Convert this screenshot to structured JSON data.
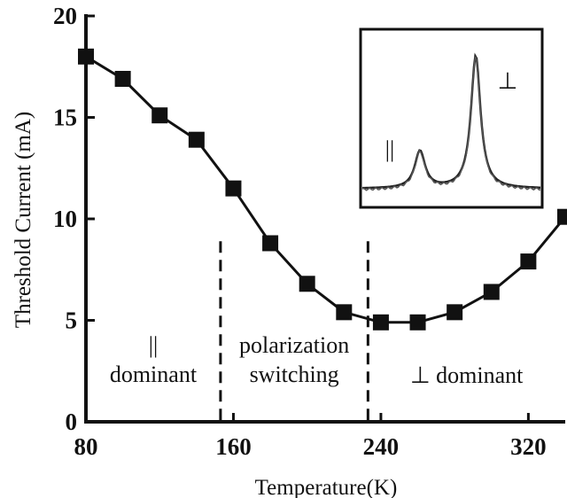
{
  "chart_data": {
    "type": "line",
    "xlabel": "Temperature(K)",
    "ylabel": "Threshold Current (mA)",
    "xlim": [
      80,
      340
    ],
    "ylim": [
      0,
      20
    ],
    "x_ticks": [
      80,
      160,
      240,
      320
    ],
    "y_ticks": [
      0,
      5,
      10,
      15,
      20
    ],
    "grid": false,
    "marker": "square",
    "line_color": "#111111",
    "series": [
      {
        "x": [
          80,
          100,
          120,
          140,
          160,
          180,
          200,
          220,
          240,
          260,
          280,
          300,
          320,
          340
        ],
        "y": [
          18.0,
          16.9,
          15.1,
          13.9,
          11.5,
          8.8,
          6.8,
          5.4,
          4.9,
          4.9,
          5.4,
          6.4,
          7.9,
          10.1
        ]
      }
    ],
    "dividers_x": [
      153,
      233
    ],
    "regions": [
      {
        "lines": [
          "||",
          "dominant"
        ]
      },
      {
        "lines": [
          "polarization",
          "switching"
        ]
      },
      {
        "lines": [
          "⊥ dominant"
        ]
      }
    ],
    "inset": {
      "label_parallel": "||",
      "label_perp": "⊥"
    }
  }
}
